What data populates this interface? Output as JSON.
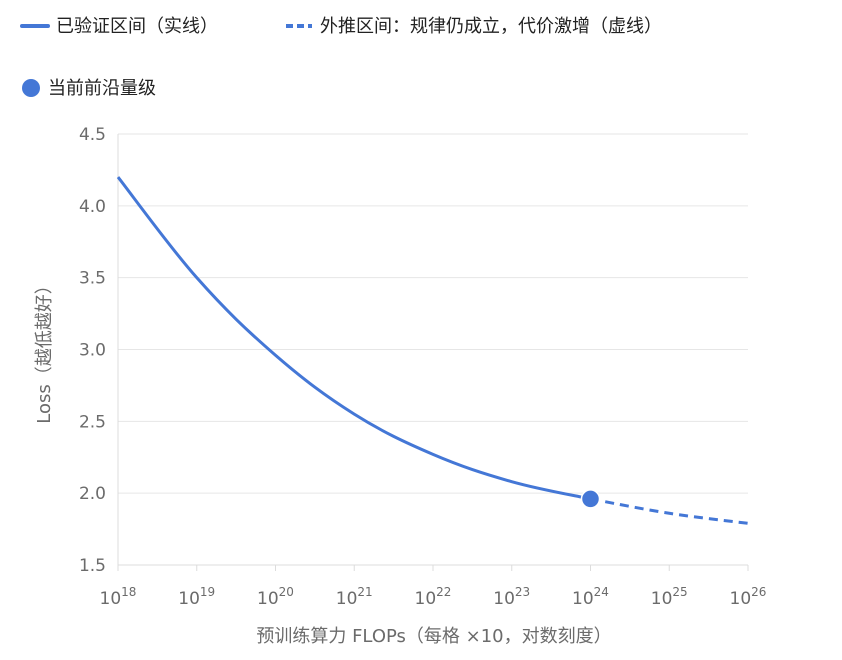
{
  "chart_data": {
    "type": "line",
    "legend": [
      {
        "label": "已验证区间（实线）",
        "style": "solid"
      },
      {
        "label": "外推区间：规律仍成立，代价激增（虚线）",
        "style": "dashed"
      },
      {
        "label": "当前前沿量级",
        "style": "marker"
      }
    ],
    "xlabel": "预训练算力 FLOPs（每格 ×10，对数刻度）",
    "ylabel": "Loss（越低越好）",
    "x_scale": "log",
    "xlim": [
      1e+18,
      1e+26
    ],
    "ylim": [
      1.5,
      4.5
    ],
    "x_ticks": [
      {
        "base": "10",
        "exp": "18"
      },
      {
        "base": "10",
        "exp": "19"
      },
      {
        "base": "10",
        "exp": "20"
      },
      {
        "base": "10",
        "exp": "21"
      },
      {
        "base": "10",
        "exp": "22"
      },
      {
        "base": "10",
        "exp": "23"
      },
      {
        "base": "10",
        "exp": "24"
      },
      {
        "base": "10",
        "exp": "25"
      },
      {
        "base": "10",
        "exp": "26"
      }
    ],
    "y_ticks": [
      "1.5",
      "2.0",
      "2.5",
      "3.0",
      "3.5",
      "4.0",
      "4.5"
    ],
    "grid": true,
    "legend_position": "top",
    "color": "#4477d6",
    "series": [
      {
        "style": "solid",
        "x": [
          1e+18,
          1e+19,
          1e+20,
          1e+21,
          1e+22,
          1e+23,
          1e+24
        ],
        "y": [
          4.2,
          3.5,
          2.96,
          2.55,
          2.27,
          2.08,
          1.96
        ]
      },
      {
        "style": "dashed",
        "x": [
          1e+24,
          1e+25,
          1e+26
        ],
        "y": [
          1.96,
          1.86,
          1.79
        ]
      }
    ],
    "marker": {
      "x": 1e+24,
      "y": 1.96
    }
  }
}
